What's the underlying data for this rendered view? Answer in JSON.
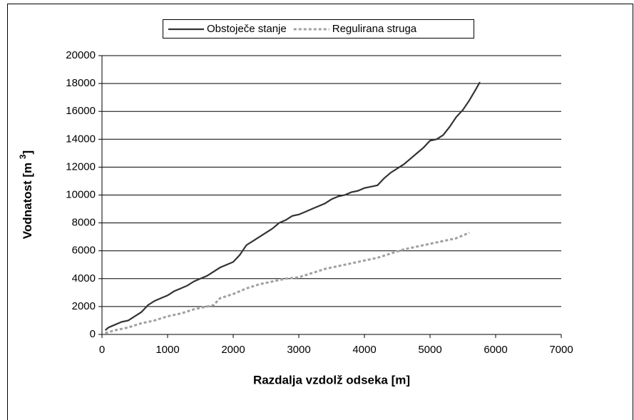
{
  "chart_data": {
    "type": "line",
    "xlabel": "Razdalja vzdolž odseka [m]",
    "ylabel": {
      "text": "Vodnatost [m ",
      "sup": "3",
      "end": "]"
    },
    "xlim": [
      0,
      7000
    ],
    "xticks": [
      0,
      1000,
      2000,
      3000,
      4000,
      5000,
      6000,
      7000
    ],
    "ylim": [
      0,
      20000
    ],
    "yticks": [
      0,
      2000,
      4000,
      6000,
      8000,
      10000,
      12000,
      14000,
      16000,
      18000,
      20000
    ],
    "grid": true,
    "legend": "top",
    "series": [
      {
        "name": "Obstoječe stanje",
        "color": "#333333",
        "style": "solid",
        "x": [
          50,
          100,
          200,
          300,
          400,
          500,
          600,
          700,
          800,
          900,
          1000,
          1100,
          1200,
          1300,
          1400,
          1500,
          1600,
          1700,
          1800,
          1900,
          2000,
          2100,
          2200,
          2300,
          2400,
          2500,
          2600,
          2700,
          2800,
          2900,
          3000,
          3100,
          3200,
          3300,
          3400,
          3500,
          3600,
          3700,
          3800,
          3900,
          4000,
          4100,
          4200,
          4300,
          4400,
          4500,
          4600,
          4700,
          4800,
          4900,
          5000,
          5100,
          5200,
          5300,
          5400,
          5500,
          5600,
          5700,
          5760
        ],
        "values": [
          300,
          500,
          700,
          900,
          1000,
          1300,
          1600,
          2100,
          2400,
          2600,
          2800,
          3100,
          3300,
          3500,
          3800,
          4000,
          4200,
          4500,
          4800,
          5000,
          5200,
          5700,
          6400,
          6700,
          7000,
          7300,
          7600,
          8000,
          8200,
          8500,
          8600,
          8800,
          9000,
          9200,
          9400,
          9700,
          9900,
          10000,
          10200,
          10300,
          10500,
          10600,
          10700,
          11200,
          11600,
          11900,
          12200,
          12600,
          13000,
          13400,
          13900,
          14000,
          14300,
          14900,
          15600,
          16100,
          16800,
          17600,
          18100
        ]
      },
      {
        "name": "Regulirana struga",
        "color": "#a0a0a0",
        "style": "dashed",
        "x": [
          50,
          200,
          400,
          600,
          800,
          1000,
          1200,
          1400,
          1600,
          1700,
          1800,
          2000,
          2200,
          2400,
          2600,
          2800,
          3000,
          3200,
          3400,
          3600,
          3800,
          4000,
          4200,
          4400,
          4600,
          4800,
          5000,
          5200,
          5400,
          5600
        ],
        "values": [
          100,
          300,
          500,
          800,
          1000,
          1300,
          1500,
          1800,
          2000,
          2100,
          2600,
          2900,
          3300,
          3600,
          3800,
          4000,
          4100,
          4400,
          4700,
          4900,
          5100,
          5300,
          5500,
          5800,
          6100,
          6300,
          6500,
          6700,
          6900,
          7300
        ]
      }
    ]
  }
}
